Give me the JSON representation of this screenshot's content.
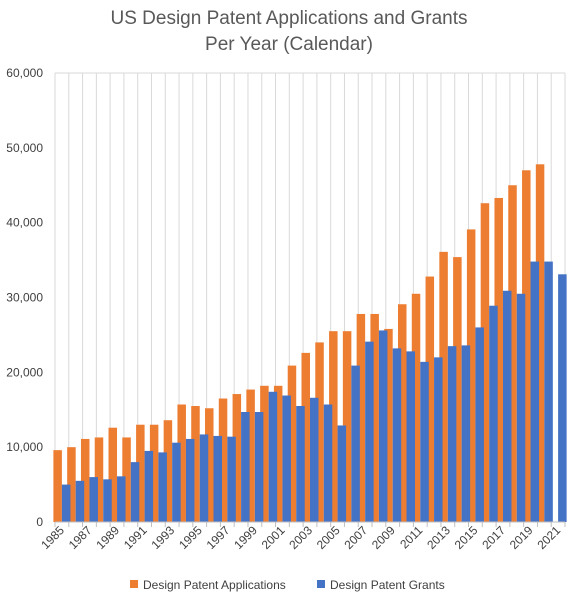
{
  "chart_data": {
    "type": "bar",
    "title_lines": [
      "US Design Patent Applications and Grants",
      "Per Year (Calendar)"
    ],
    "xlabel": "",
    "ylabel": "",
    "ylim": [
      0,
      60000
    ],
    "y_ticks": [
      "0",
      "10,000",
      "20,000",
      "30,000",
      "40,000",
      "50,000",
      "60,000"
    ],
    "x_tick_labels": [
      "1985",
      "1987",
      "1989",
      "1991",
      "1993",
      "1995",
      "1997",
      "1999",
      "2001",
      "2003",
      "2005",
      "2007",
      "2009",
      "2011",
      "2013",
      "2015",
      "2017",
      "2019",
      "2021"
    ],
    "categories": [
      "1985",
      "1986",
      "1987",
      "1988",
      "1989",
      "1990",
      "1991",
      "1992",
      "1993",
      "1994",
      "1995",
      "1996",
      "1997",
      "1998",
      "1999",
      "2000",
      "2001",
      "2002",
      "2003",
      "2004",
      "2005",
      "2006",
      "2007",
      "2008",
      "2009",
      "2010",
      "2011",
      "2012",
      "2013",
      "2014",
      "2015",
      "2016",
      "2017",
      "2018",
      "2019",
      "2020",
      "2021"
    ],
    "series": [
      {
        "name": "Design Patent Applications",
        "color": "#ED7D31",
        "values": [
          9600,
          10000,
          11100,
          11300,
          12600,
          11300,
          13000,
          13000,
          13600,
          15700,
          15500,
          15200,
          16500,
          17100,
          17700,
          18200,
          18200,
          20900,
          22600,
          24000,
          25500,
          25500,
          27800,
          27800,
          25800,
          29100,
          30500,
          32800,
          36100,
          35400,
          39100,
          42600,
          43300,
          45000,
          47000,
          47800,
          null
        ]
      },
      {
        "name": "Design Patent Grants",
        "color": "#4472C4",
        "values": [
          5000,
          5500,
          6000,
          5700,
          6100,
          8000,
          9500,
          9300,
          10600,
          11100,
          11700,
          11500,
          11400,
          14700,
          14700,
          17400,
          16900,
          15500,
          16600,
          15700,
          12900,
          20900,
          24100,
          25600,
          23200,
          22800,
          21400,
          22000,
          23500,
          23600,
          26000,
          28900,
          30900,
          30500,
          34800,
          34800,
          33100
        ]
      }
    ],
    "grid": "vertical",
    "legend": "bottom"
  }
}
